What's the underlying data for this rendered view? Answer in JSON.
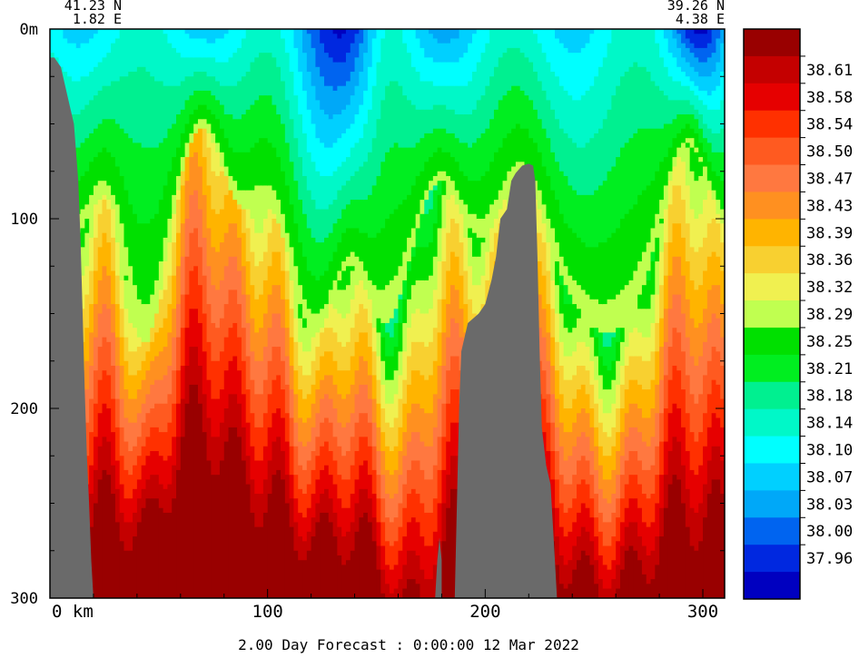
{
  "chart_data": {
    "type": "heatmap",
    "variable_scale": "salinity",
    "section_start": {
      "lat": "41.23 N",
      "lon": "1.82 E"
    },
    "section_end": {
      "lat": "39.26 N",
      "lon": "4.38 E"
    },
    "yaxis": {
      "range": [
        0,
        300
      ],
      "ticks": [
        {
          "value": 0,
          "label": "0m"
        },
        {
          "value": 100,
          "label": "100"
        },
        {
          "value": 200,
          "label": "200"
        },
        {
          "value": 300,
          "label": "300"
        }
      ]
    },
    "xaxis": {
      "range": [
        0,
        310
      ],
      "ticks": [
        {
          "value": 0,
          "label": "0 km"
        },
        {
          "value": 100,
          "label": "100"
        },
        {
          "value": 200,
          "label": "200"
        },
        {
          "value": 300,
          "label": "300"
        }
      ]
    },
    "colorbar": {
      "levels": [
        {
          "color": "#990000",
          "label": ""
        },
        {
          "color": "#c40000",
          "label": "38.61"
        },
        {
          "color": "#e60000",
          "label": "38.58"
        },
        {
          "color": "#ff3000",
          "label": "38.54"
        },
        {
          "color": "#ff5a20",
          "label": "38.50"
        },
        {
          "color": "#ff7840",
          "label": "38.47"
        },
        {
          "color": "#ff9020",
          "label": "38.43"
        },
        {
          "color": "#ffb400",
          "label": "38.39"
        },
        {
          "color": "#f8d030",
          "label": "38.36"
        },
        {
          "color": "#f0f050",
          "label": "38.32"
        },
        {
          "color": "#c0ff50",
          "label": "38.29"
        },
        {
          "color": "#00e000",
          "label": "38.25"
        },
        {
          "color": "#00ee20",
          "label": "38.21"
        },
        {
          "color": "#00f090",
          "label": "38.18"
        },
        {
          "color": "#00f8c8",
          "label": "38.14"
        },
        {
          "color": "#00ffff",
          "label": "38.10"
        },
        {
          "color": "#00d0ff",
          "label": "38.07"
        },
        {
          "color": "#00a8f8",
          "label": "38.03"
        },
        {
          "color": "#0064f0",
          "label": "38.00"
        },
        {
          "color": "#0028e0",
          "label": "37.96"
        },
        {
          "color": "#0000c0",
          "label": ""
        }
      ]
    },
    "terrain_color": "#6a6a6a",
    "footer": "2.00 Day Forecast :  0:00:00  12 Mar 2022"
  }
}
